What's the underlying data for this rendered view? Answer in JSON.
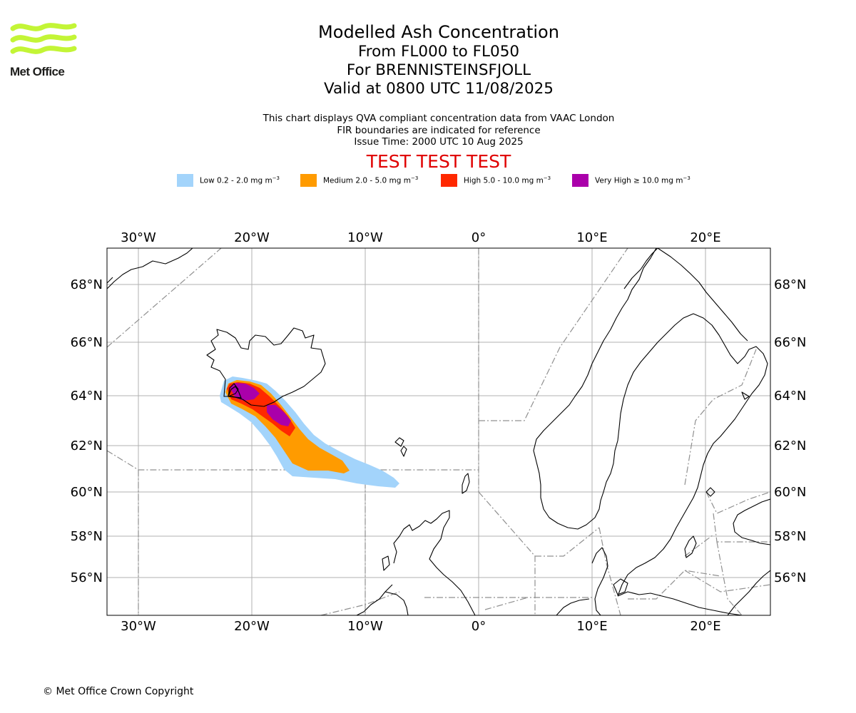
{
  "logo": {
    "text": "Met Office"
  },
  "title": {
    "line1": "Modelled Ash Concentration",
    "line2": "From FL000 to FL050",
    "line3": "For BRENNISTEINSFJOLL",
    "line4": "Valid at 0800 UTC 11/08/2025"
  },
  "notes": {
    "line1": "This chart displays QVA compliant concentration data from VAAC London",
    "line2": "FIR boundaries are indicated for reference",
    "line3": "Issue Time: 2000 UTC 10 Aug 2025"
  },
  "test_banner": "TEST TEST TEST",
  "legend": [
    {
      "label": "Low 0.2 - 2.0 mg m",
      "color": "#a3d4fb"
    },
    {
      "label": "Medium 2.0 - 5.0 mg m",
      "color": "#ff9b00"
    },
    {
      "label": "High 5.0 - 10.0 mg m",
      "color": "#ff2800"
    },
    {
      "label": "Very High ≥ 10.0 mg m",
      "color": "#aa00aa"
    }
  ],
  "unit_exponent": "−3",
  "map": {
    "lon_ticks": [
      "30°W",
      "20°W",
      "10°W",
      "0°",
      "10°E",
      "20°E"
    ],
    "lat_ticks": [
      "68°N",
      "66°N",
      "64°N",
      "62°N",
      "60°N",
      "58°N",
      "56°N"
    ]
  },
  "copyright": "© Met Office Crown Copyright"
}
